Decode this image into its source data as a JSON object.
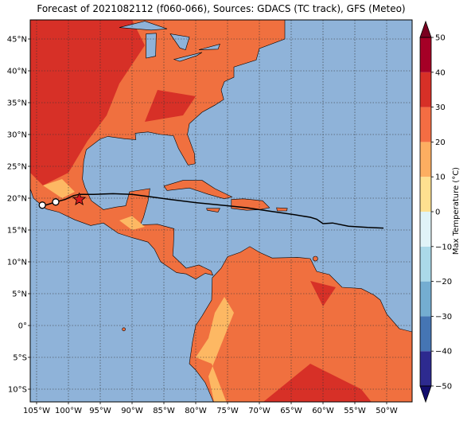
{
  "title": "Forecast of 2021082112 (f060-066), Sources: GDACS (TC track), GFS (Meteo)",
  "map": {
    "lon_range": [
      -106,
      -46
    ],
    "lat_range": [
      -12,
      48
    ],
    "lat_ticks": [
      {
        "v": 45,
        "label": "45°N"
      },
      {
        "v": 40,
        "label": "40°N"
      },
      {
        "v": 35,
        "label": "35°N"
      },
      {
        "v": 30,
        "label": "30°N"
      },
      {
        "v": 25,
        "label": "25°N"
      },
      {
        "v": 20,
        "label": "20°N"
      },
      {
        "v": 15,
        "label": "15°N"
      },
      {
        "v": 10,
        "label": "10°N"
      },
      {
        "v": 5,
        "label": "5°N"
      },
      {
        "v": 0,
        "label": "0°"
      },
      {
        "v": -5,
        "label": "5°S"
      },
      {
        "v": -10,
        "label": "10°S"
      }
    ],
    "lon_ticks": [
      {
        "v": -105,
        "label": "105°W"
      },
      {
        "v": -100,
        "label": "100°W"
      },
      {
        "v": -95,
        "label": "95°W"
      },
      {
        "v": -90,
        "label": "90°W"
      },
      {
        "v": -85,
        "label": "85°W"
      },
      {
        "v": -80,
        "label": "80°W"
      },
      {
        "v": -75,
        "label": "75°W"
      },
      {
        "v": -70,
        "label": "70°W"
      },
      {
        "v": -65,
        "label": "65°W"
      },
      {
        "v": -60,
        "label": "60°W"
      },
      {
        "v": -55,
        "label": "55°W"
      },
      {
        "v": -50,
        "label": "50°W"
      }
    ],
    "ocean_color": "#8fb3d9",
    "land_color": "#f0703f",
    "hot_color": "#d73027",
    "cool_color": "#fdb863",
    "track": [
      [
        -103.6,
        18.9
      ],
      [
        -102.0,
        19.4
      ],
      [
        -100.5,
        19.8
      ],
      [
        -99.2,
        20.4
      ],
      [
        -98.3,
        20.6
      ],
      [
        -96.0,
        20.6
      ],
      [
        -93.0,
        20.7
      ],
      [
        -90.0,
        20.6
      ],
      [
        -87.0,
        20.2
      ],
      [
        -84.0,
        19.8
      ],
      [
        -80.0,
        19.3
      ],
      [
        -76.0,
        18.9
      ],
      [
        -72.0,
        18.5
      ],
      [
        -68.0,
        17.9
      ],
      [
        -64.5,
        17.4
      ],
      [
        -62.0,
        17.0
      ],
      [
        -61.0,
        16.7
      ],
      [
        -60.0,
        16.0
      ],
      [
        -58.5,
        16.1
      ],
      [
        -56.0,
        15.6
      ],
      [
        -53.0,
        15.4
      ],
      [
        -50.5,
        15.3
      ]
    ],
    "track_points": [
      [
        -104.1,
        18.9
      ],
      [
        -102.0,
        19.4
      ]
    ],
    "star": [
      -98.3,
      19.8
    ]
  },
  "colorbar": {
    "label": "Max Temperature (°C)",
    "range": [
      -50,
      50
    ],
    "ticks": [
      {
        "v": 50,
        "label": "50"
      },
      {
        "v": 40,
        "label": "40"
      },
      {
        "v": 30,
        "label": "30"
      },
      {
        "v": 20,
        "label": "20"
      },
      {
        "v": 10,
        "label": "10"
      },
      {
        "v": 0,
        "label": "0"
      },
      {
        "v": -10,
        "label": "−10"
      },
      {
        "v": -20,
        "label": "−20"
      },
      {
        "v": -30,
        "label": "−30"
      },
      {
        "v": -40,
        "label": "−40"
      },
      {
        "v": -50,
        "label": "−50"
      }
    ],
    "colors": [
      "#2d2a8f",
      "#4575b4",
      "#74add1",
      "#abd9e9",
      "#e0f3f8",
      "#fee090",
      "#fdae61",
      "#f46d43",
      "#d73027",
      "#a50026"
    ],
    "extend_low": "#130e6e",
    "extend_high": "#7a0020"
  }
}
